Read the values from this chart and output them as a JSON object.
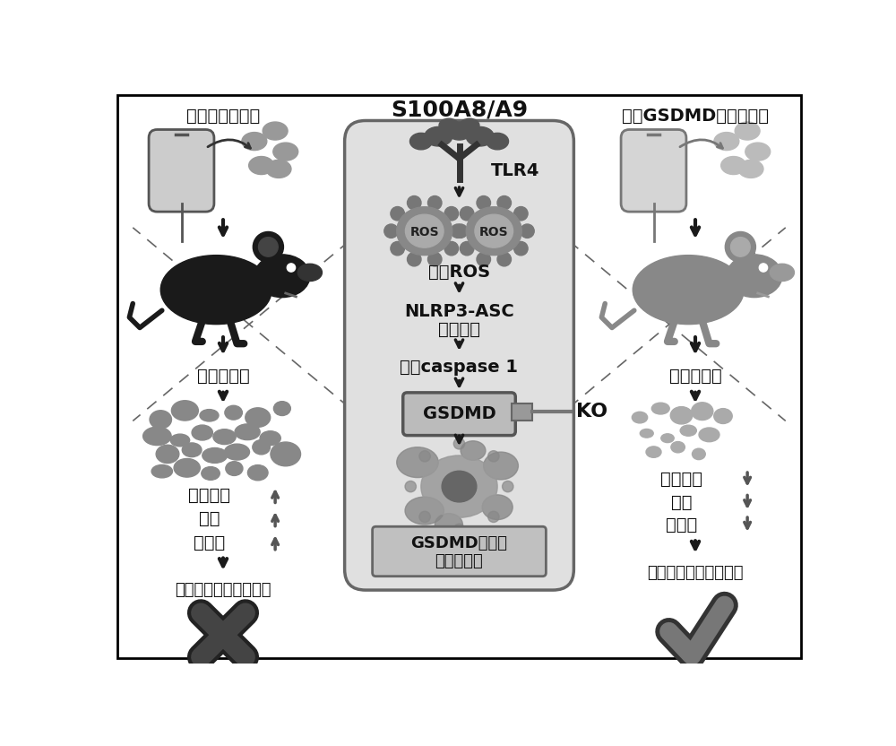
{
  "bg_color": "#ffffff",
  "left_title": "输注正常血小板",
  "right_title": "输注GSDMD敲除血小板",
  "center_title": "S100A8/A9",
  "tlr4_label": "TLR4",
  "ros_label1": "ROS",
  "ros_label2": "ROS",
  "zengja_ros": "增加ROS",
  "nlrp3": "NLRP3-ASC",
  "yanxing": "炎性小体",
  "jihu_caspase": "激活caspase 1",
  "gsdmd_label": "GSDMD",
  "ko_label": "KO",
  "gsdmd_bottom": "GSDMD依赖性",
  "gsdmd_bottom2": "血小板焦亡",
  "sepsis_left": "严重脓毒症",
  "sepsis_right": "严重脓毒症",
  "inflam_up": "炎症反应",
  "bleed_up": "出血",
  "death_up": "死亡率",
  "inflam_down": "炎症反应",
  "bleed_down": "出血",
  "death_down": "死亡率",
  "conclusion_left": "加剧炎症和增加存活率",
  "conclusion_right": "改善炎症并提高生存率"
}
